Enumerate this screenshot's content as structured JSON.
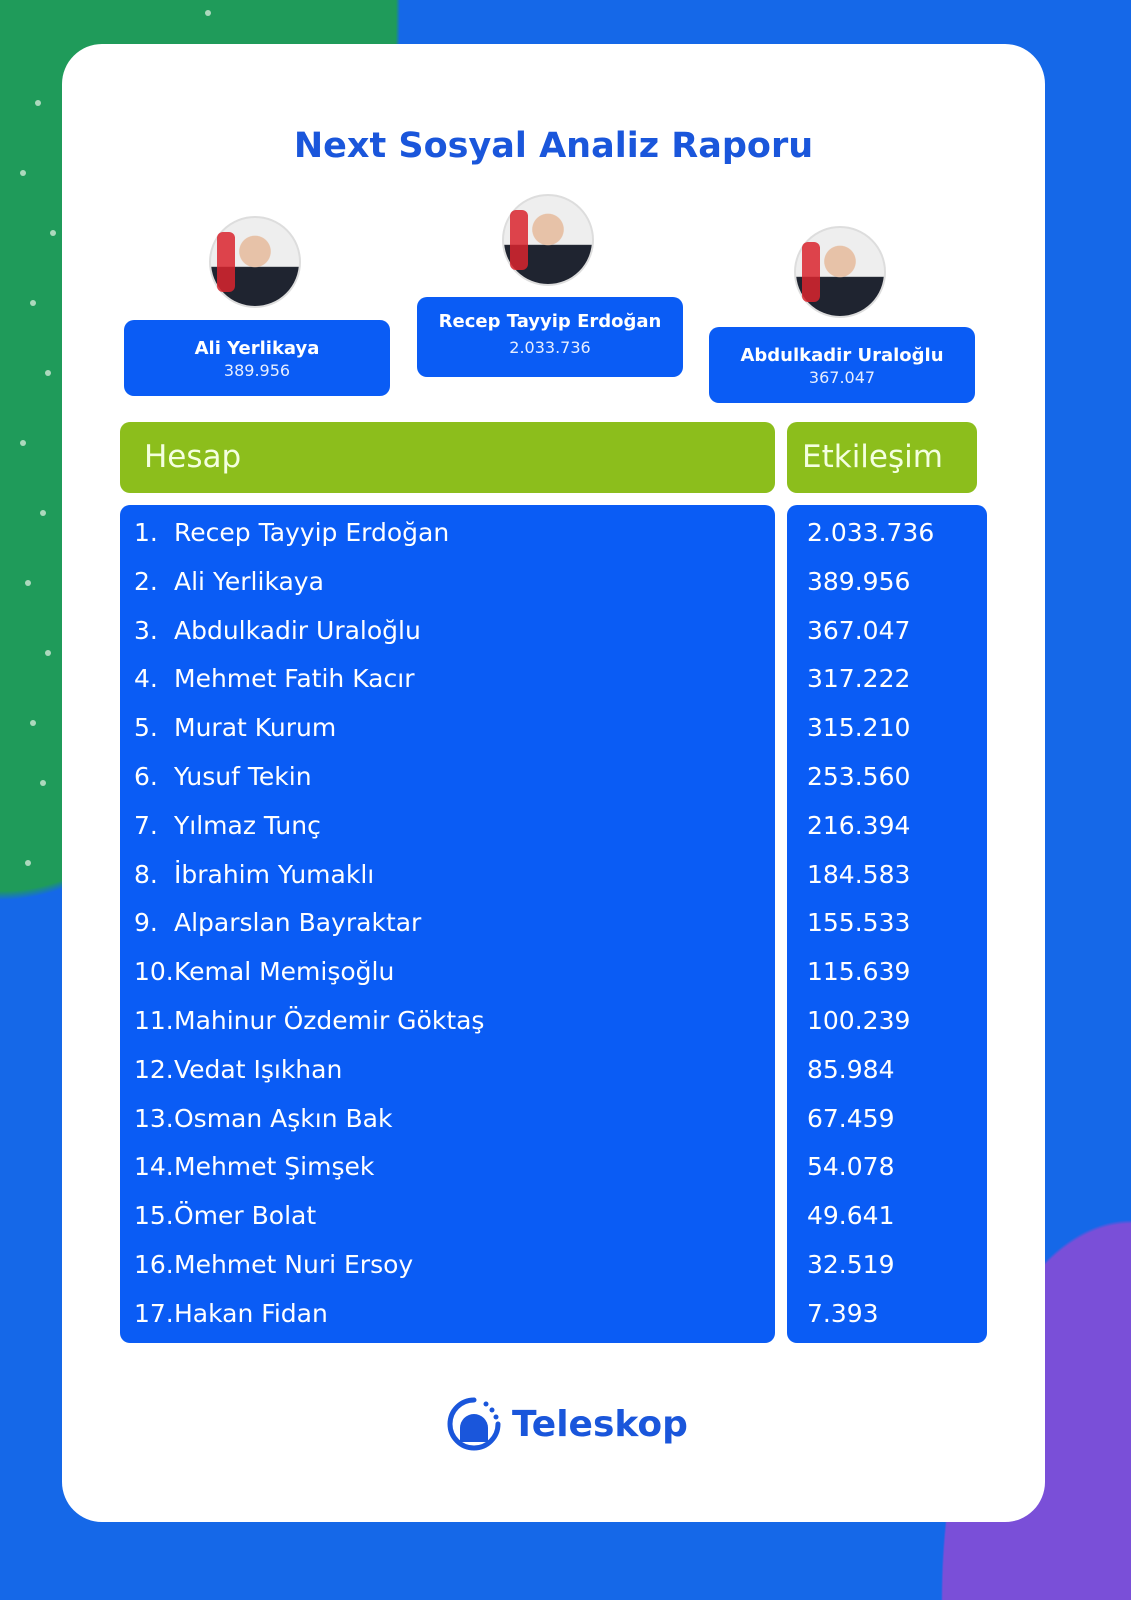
{
  "title": "Next Sosyal Analiz Raporu",
  "podium": [
    {
      "name": "Ali Yerlikaya",
      "value": "389.956",
      "rank": 2
    },
    {
      "name": "Recep Tayyip Erdoğan",
      "value": "2.033.736",
      "rank": 1
    },
    {
      "name": "Abdulkadir Uraloğlu",
      "value": "367.047",
      "rank": 3
    }
  ],
  "table": {
    "headers": [
      "Hesap",
      "Etkileşim"
    ],
    "rows": [
      {
        "n": "1.",
        "name": "Recep Tayyip Erdoğan",
        "value": "2.033.736"
      },
      {
        "n": "2.",
        "name": "Ali Yerlikaya",
        "value": "389.956"
      },
      {
        "n": "3.",
        "name": "Abdulkadir Uraloğlu",
        "value": "367.047"
      },
      {
        "n": "4.",
        "name": "Mehmet Fatih Kacır",
        "value": "317.222"
      },
      {
        "n": "5.",
        "name": "Murat Kurum",
        "value": "315.210"
      },
      {
        "n": "6.",
        "name": "Yusuf Tekin",
        "value": "253.560"
      },
      {
        "n": "7.",
        "name": "Yılmaz Tunç",
        "value": "216.394"
      },
      {
        "n": "8.",
        "name": "İbrahim Yumaklı",
        "value": "184.583"
      },
      {
        "n": "9.",
        "name": "Alparslan Bayraktar",
        "value": "155.533"
      },
      {
        "n": "10.",
        "name": "Kemal Memişoğlu",
        "value": "115.639"
      },
      {
        "n": "11.",
        "name": "Mahinur Özdemir Göktaş",
        "value": "100.239"
      },
      {
        "n": "12.",
        "name": "Vedat Işıkhan",
        "value": "85.984"
      },
      {
        "n": "13.",
        "name": "Osman Aşkın Bak",
        "value": "67.459"
      },
      {
        "n": "14.",
        "name": "Mehmet Şimşek",
        "value": "54.078"
      },
      {
        "n": "15.",
        "name": "Ömer Bolat",
        "value": "49.641"
      },
      {
        "n": "16.",
        "name": "Mehmet Nuri Ersoy",
        "value": "32.519"
      },
      {
        "n": "17.",
        "name": "Hakan Fidan",
        "value": "7.393"
      }
    ]
  },
  "logo": {
    "text": "Teleskop",
    "icon": "telescope-dome-icon"
  },
  "colors": {
    "blue": "#0a5cf5",
    "green": "#8cbe1c",
    "title": "#1a56db"
  }
}
